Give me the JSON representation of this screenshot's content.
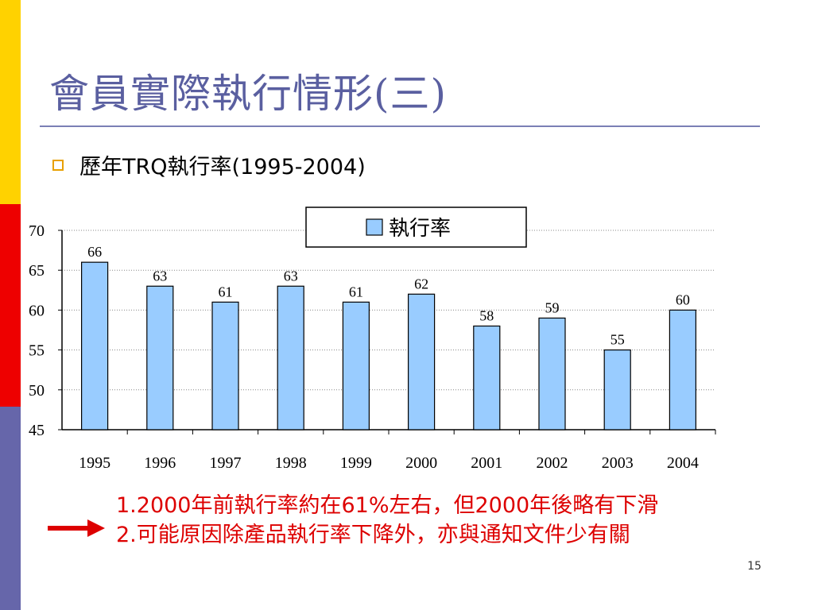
{
  "slide": {
    "title": "會員實際執行情形(三)",
    "bullet": "歷年TRQ執行率(1995-2004)",
    "notes": [
      "1.2000年前執行率約在61%左右，但2000年後略有下滑",
      "2.可能原因除產品執行率下降外，亦與通知文件少有關"
    ],
    "page_number": "15"
  },
  "colors": {
    "bar_fill": "#99ccff",
    "title": "#5a5fa0",
    "notes": "#dd0000",
    "bullet_marker": "#e8a000"
  },
  "icons": {
    "bullet": "hollow-square-bullet-icon",
    "arrow": "right-arrow-icon"
  },
  "chart_data": {
    "type": "bar",
    "categories": [
      "1995",
      "1996",
      "1997",
      "1998",
      "1999",
      "2000",
      "2001",
      "2002",
      "2003",
      "2004"
    ],
    "series": [
      {
        "name": "執行率",
        "values": [
          66,
          63,
          61,
          63,
          61,
          62,
          58,
          59,
          55,
          60
        ]
      }
    ],
    "ylim": [
      45,
      70
    ],
    "yticks": [
      45,
      50,
      55,
      60,
      65,
      70
    ],
    "grid": true,
    "legend": "top-right",
    "data_labels": true
  }
}
